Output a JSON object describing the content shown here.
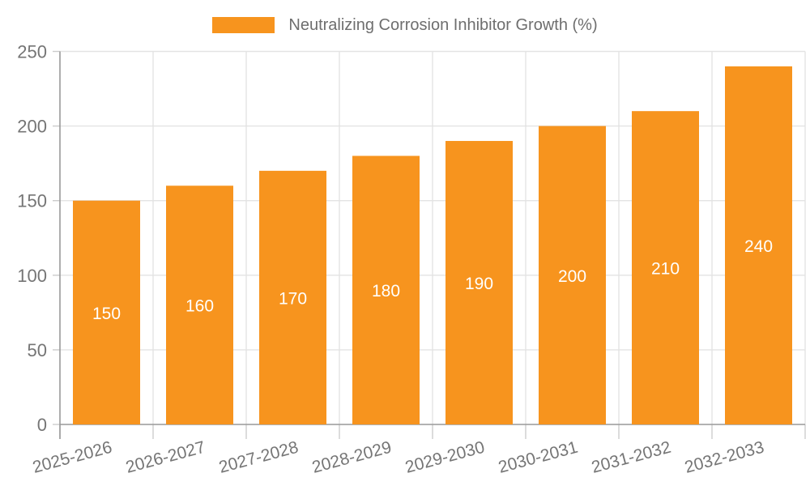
{
  "legend": {
    "label": "Neutralizing Corrosion Inhibitor Growth (%)"
  },
  "colors": {
    "bar": "#F7941E",
    "axis_line": "#999999",
    "grid_line": "#E3E3E3",
    "tick_line": "#CCCCCC",
    "axis_label_text": "#757575",
    "value_label_text": "#FFFFFF",
    "legend_text": "#6E6E6E",
    "background": "#FFFFFF"
  },
  "chart_data": {
    "type": "bar",
    "title": "Neutralizing Corrosion Inhibitor Growth (%)",
    "categories": [
      "2025-2026",
      "2026-2027",
      "2027-2028",
      "2028-2029",
      "2029-2030",
      "2030-2031",
      "2031-2032",
      "2032-2033"
    ],
    "values": [
      150,
      160,
      170,
      180,
      190,
      200,
      210,
      240
    ],
    "xlabel": "",
    "ylabel": "",
    "ylim": [
      0,
      250
    ],
    "yticks": [
      0,
      50,
      100,
      150,
      200,
      250
    ],
    "grid": true,
    "legend_position": "top",
    "value_labels": "inside-center",
    "x_tick_label_rotation_deg": -15
  }
}
